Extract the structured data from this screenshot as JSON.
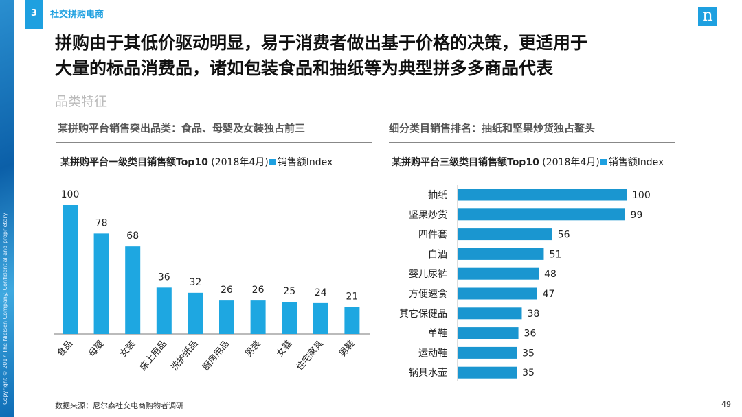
{
  "copyright": "Copyright © 2017 The Nielsen Company. Confidential and proprietary.",
  "section": {
    "number": "3",
    "title": "社交拼购电商"
  },
  "logo": "n",
  "title_lines": [
    "拼购由于其低价驱动明显，易于消费者做出基于价格的决策，更适用于",
    "大量的标品消费品，诸如包装食品和抽纸等为典型拼多多商品代表"
  ],
  "subtitle": "品类特征",
  "left": {
    "header": "某拼购平台销售突出品类：食品、母婴及女装独占前三"
  },
  "right": {
    "header": "细分类目销售排名：抽纸和坚果炒货独占鳌头"
  },
  "chart_data": [
    {
      "type": "bar",
      "orientation": "vertical",
      "title": "某拼购平台一级类目销售额Top10",
      "subtitle": "(2018年4月)",
      "legend": [
        "销售额Index"
      ],
      "color": "#1ea7e1",
      "categories": [
        "食品",
        "母婴",
        "女装",
        "床上用品",
        "洗护纸品",
        "厨房用品",
        "男装",
        "女鞋",
        "住宅家具",
        "男鞋"
      ],
      "values": [
        100,
        78,
        68,
        36,
        32,
        26,
        26,
        25,
        24,
        21
      ],
      "ylim": [
        0,
        100
      ]
    },
    {
      "type": "bar",
      "orientation": "horizontal",
      "title": "某拼购平台三级类目销售额Top10",
      "subtitle": "(2018年4月)",
      "legend": [
        "销售额Index"
      ],
      "color": "#1a96d0",
      "categories": [
        "抽纸",
        "坚果炒货",
        "四件套",
        "白酒",
        "婴儿尿裤",
        "方便速食",
        "其它保健品",
        "单鞋",
        "运动鞋",
        "锅具水壶"
      ],
      "values": [
        100,
        99,
        56,
        51,
        48,
        47,
        38,
        36,
        35,
        35
      ],
      "xlim": [
        0,
        100
      ]
    }
  ],
  "footer": {
    "source": "数据来源：尼尔森社交电商购物者调研",
    "page": "49"
  }
}
